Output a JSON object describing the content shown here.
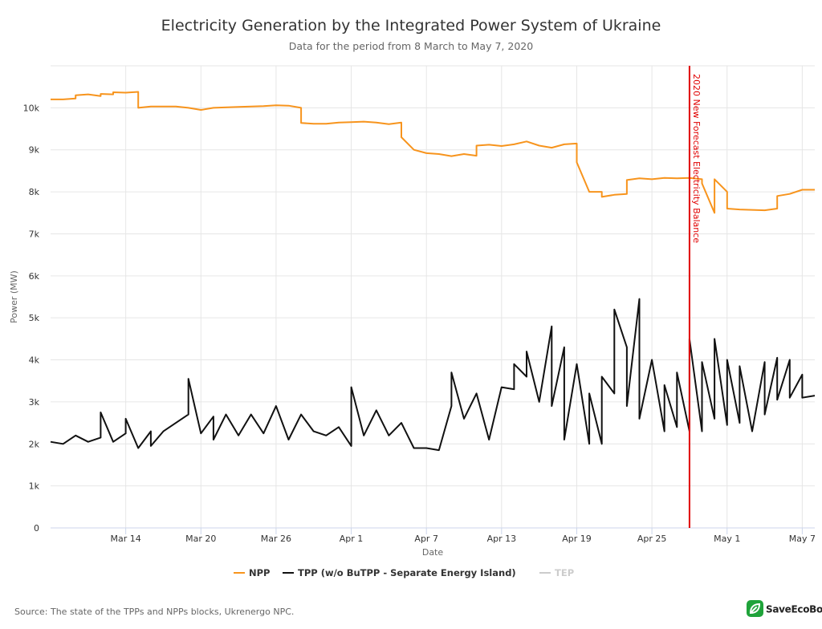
{
  "chart_data": {
    "type": "line",
    "title": "Electricity Generation by the Integrated Power System of Ukraine",
    "subtitle": "Data for the period from 8 March to May 7, 2020",
    "xlabel": "Date",
    "ylabel": "Power (MW)",
    "ylim": [
      0,
      11000
    ],
    "yticks": [
      {
        "value": 0,
        "label": "0"
      },
      {
        "value": 1000,
        "label": "1k"
      },
      {
        "value": 2000,
        "label": "2k"
      },
      {
        "value": 3000,
        "label": "3k"
      },
      {
        "value": 4000,
        "label": "4k"
      },
      {
        "value": 5000,
        "label": "5k"
      },
      {
        "value": 6000,
        "label": "6k"
      },
      {
        "value": 7000,
        "label": "7k"
      },
      {
        "value": 8000,
        "label": "8k"
      },
      {
        "value": 9000,
        "label": "9k"
      },
      {
        "value": 10000,
        "label": "10k"
      }
    ],
    "xlim": [
      "2020-03-08",
      "2020-05-08"
    ],
    "xticks": [
      {
        "date": "2020-03-14",
        "label": "Mar 14"
      },
      {
        "date": "2020-03-20",
        "label": "Mar 20"
      },
      {
        "date": "2020-03-26",
        "label": "Mar 26"
      },
      {
        "date": "2020-04-01",
        "label": "Apr 1"
      },
      {
        "date": "2020-04-07",
        "label": "Apr 7"
      },
      {
        "date": "2020-04-13",
        "label": "Apr 13"
      },
      {
        "date": "2020-04-19",
        "label": "Apr 19"
      },
      {
        "date": "2020-04-25",
        "label": "Apr 25"
      },
      {
        "date": "2020-05-01",
        "label": "May 1"
      },
      {
        "date": "2020-05-07",
        "label": "May 7"
      }
    ],
    "grid": true,
    "legend_position": "bottom-center",
    "plot_line": {
      "date": "2020-04-28",
      "label": "2020 New Forecast Electricity Balance",
      "color": "#e00000"
    },
    "series": [
      {
        "name": "NPP",
        "color": "#f7941d",
        "points": [
          [
            "2020-03-08",
            10200
          ],
          [
            "2020-03-09",
            10200
          ],
          [
            "2020-03-10",
            10220
          ],
          [
            "2020-03-10",
            10300
          ],
          [
            "2020-03-11",
            10320
          ],
          [
            "2020-03-12",
            10280
          ],
          [
            "2020-03-12",
            10330
          ],
          [
            "2020-03-13",
            10320
          ],
          [
            "2020-03-13",
            10370
          ],
          [
            "2020-03-14",
            10360
          ],
          [
            "2020-03-15",
            10380
          ],
          [
            "2020-03-15",
            10000
          ],
          [
            "2020-03-16",
            10030
          ],
          [
            "2020-03-18",
            10030
          ],
          [
            "2020-03-19",
            10000
          ],
          [
            "2020-03-20",
            9950
          ],
          [
            "2020-03-21",
            10000
          ],
          [
            "2020-03-23",
            10020
          ],
          [
            "2020-03-25",
            10040
          ],
          [
            "2020-03-26",
            10060
          ],
          [
            "2020-03-27",
            10050
          ],
          [
            "2020-03-28",
            10000
          ],
          [
            "2020-03-28",
            9640
          ],
          [
            "2020-03-29",
            9620
          ],
          [
            "2020-03-30",
            9620
          ],
          [
            "2020-03-31",
            9650
          ],
          [
            "2020-04-01",
            9660
          ],
          [
            "2020-04-02",
            9670
          ],
          [
            "2020-04-03",
            9650
          ],
          [
            "2020-04-04",
            9610
          ],
          [
            "2020-04-05",
            9650
          ],
          [
            "2020-04-05",
            9300
          ],
          [
            "2020-04-06",
            9000
          ],
          [
            "2020-04-07",
            8920
          ],
          [
            "2020-04-08",
            8900
          ],
          [
            "2020-04-09",
            8850
          ],
          [
            "2020-04-10",
            8900
          ],
          [
            "2020-04-11",
            8860
          ],
          [
            "2020-04-11",
            9100
          ],
          [
            "2020-04-12",
            9120
          ],
          [
            "2020-04-13",
            9090
          ],
          [
            "2020-04-14",
            9130
          ],
          [
            "2020-04-15",
            9200
          ],
          [
            "2020-04-16",
            9100
          ],
          [
            "2020-04-17",
            9050
          ],
          [
            "2020-04-18",
            9130
          ],
          [
            "2020-04-19",
            9150
          ],
          [
            "2020-04-19",
            8700
          ],
          [
            "2020-04-20",
            8000
          ],
          [
            "2020-04-21",
            8000
          ],
          [
            "2020-04-21",
            7880
          ],
          [
            "2020-04-22",
            7930
          ],
          [
            "2020-04-23",
            7950
          ],
          [
            "2020-04-23",
            8280
          ],
          [
            "2020-04-24",
            8320
          ],
          [
            "2020-04-25",
            8300
          ],
          [
            "2020-04-26",
            8330
          ],
          [
            "2020-04-27",
            8320
          ],
          [
            "2020-04-28",
            8330
          ],
          [
            "2020-04-29",
            8300
          ],
          [
            "2020-04-29",
            8200
          ],
          [
            "2020-04-30",
            7500
          ],
          [
            "2020-04-30",
            8300
          ],
          [
            "2020-05-01",
            8000
          ],
          [
            "2020-05-01",
            7600
          ],
          [
            "2020-05-02",
            7580
          ],
          [
            "2020-05-03",
            7570
          ],
          [
            "2020-05-04",
            7560
          ],
          [
            "2020-05-05",
            7600
          ],
          [
            "2020-05-05",
            7900
          ],
          [
            "2020-05-06",
            7950
          ],
          [
            "2020-05-07",
            8050
          ],
          [
            "2020-05-08",
            8050
          ]
        ]
      },
      {
        "name": "TPP (w/o BuTPP - Separate Energy Island)",
        "color": "#111111",
        "points": [
          [
            "2020-03-08",
            2050
          ],
          [
            "2020-03-09",
            2000
          ],
          [
            "2020-03-10",
            2200
          ],
          [
            "2020-03-11",
            2050
          ],
          [
            "2020-03-12",
            2150
          ],
          [
            "2020-03-12",
            2750
          ],
          [
            "2020-03-13",
            2050
          ],
          [
            "2020-03-14",
            2250
          ],
          [
            "2020-03-14",
            2600
          ],
          [
            "2020-03-15",
            1900
          ],
          [
            "2020-03-16",
            2300
          ],
          [
            "2020-03-16",
            1950
          ],
          [
            "2020-03-17",
            2300
          ],
          [
            "2020-03-18",
            2500
          ],
          [
            "2020-03-19",
            2700
          ],
          [
            "2020-03-19",
            3550
          ],
          [
            "2020-03-20",
            2250
          ],
          [
            "2020-03-21",
            2650
          ],
          [
            "2020-03-21",
            2100
          ],
          [
            "2020-03-22",
            2700
          ],
          [
            "2020-03-23",
            2200
          ],
          [
            "2020-03-24",
            2700
          ],
          [
            "2020-03-25",
            2250
          ],
          [
            "2020-03-26",
            2900
          ],
          [
            "2020-03-27",
            2100
          ],
          [
            "2020-03-28",
            2700
          ],
          [
            "2020-03-29",
            2300
          ],
          [
            "2020-03-30",
            2200
          ],
          [
            "2020-03-31",
            2400
          ],
          [
            "2020-04-01",
            1950
          ],
          [
            "2020-04-01",
            3350
          ],
          [
            "2020-04-02",
            2200
          ],
          [
            "2020-04-03",
            2800
          ],
          [
            "2020-04-04",
            2200
          ],
          [
            "2020-04-05",
            2500
          ],
          [
            "2020-04-06",
            1900
          ],
          [
            "2020-04-07",
            1900
          ],
          [
            "2020-04-08",
            1850
          ],
          [
            "2020-04-09",
            2900
          ],
          [
            "2020-04-09",
            3700
          ],
          [
            "2020-04-10",
            2600
          ],
          [
            "2020-04-11",
            3200
          ],
          [
            "2020-04-12",
            2100
          ],
          [
            "2020-04-13",
            3350
          ],
          [
            "2020-04-14",
            3300
          ],
          [
            "2020-04-14",
            3900
          ],
          [
            "2020-04-15",
            3600
          ],
          [
            "2020-04-15",
            4200
          ],
          [
            "2020-04-16",
            3000
          ],
          [
            "2020-04-17",
            4800
          ],
          [
            "2020-04-17",
            2900
          ],
          [
            "2020-04-18",
            4300
          ],
          [
            "2020-04-18",
            2100
          ],
          [
            "2020-04-19",
            3900
          ],
          [
            "2020-04-20",
            2000
          ],
          [
            "2020-04-20",
            3200
          ],
          [
            "2020-04-21",
            2000
          ],
          [
            "2020-04-21",
            3600
          ],
          [
            "2020-04-22",
            3200
          ],
          [
            "2020-04-22",
            5200
          ],
          [
            "2020-04-23",
            4300
          ],
          [
            "2020-04-23",
            2900
          ],
          [
            "2020-04-24",
            5450
          ],
          [
            "2020-04-24",
            2600
          ],
          [
            "2020-04-25",
            4000
          ],
          [
            "2020-04-26",
            2300
          ],
          [
            "2020-04-26",
            3400
          ],
          [
            "2020-04-27",
            2400
          ],
          [
            "2020-04-27",
            3700
          ],
          [
            "2020-04-28",
            2300
          ],
          [
            "2020-04-28",
            4500
          ],
          [
            "2020-04-29",
            2300
          ],
          [
            "2020-04-29",
            3950
          ],
          [
            "2020-04-30",
            2600
          ],
          [
            "2020-04-30",
            4500
          ],
          [
            "2020-05-01",
            2450
          ],
          [
            "2020-05-01",
            4000
          ],
          [
            "2020-05-02",
            2500
          ],
          [
            "2020-05-02",
            3850
          ],
          [
            "2020-05-03",
            2300
          ],
          [
            "2020-05-04",
            3950
          ],
          [
            "2020-05-04",
            2700
          ],
          [
            "2020-05-05",
            4050
          ],
          [
            "2020-05-05",
            3050
          ],
          [
            "2020-05-06",
            4000
          ],
          [
            "2020-05-06",
            3100
          ],
          [
            "2020-05-07",
            3650
          ],
          [
            "2020-05-07",
            3100
          ],
          [
            "2020-05-08",
            3150
          ]
        ]
      },
      {
        "name": "TEP",
        "color": "#cccccc",
        "hidden": true,
        "points": []
      }
    ]
  },
  "footer": {
    "source": "Source: The state of the TPPs and NPPs blocks, Ukrenergo NPC.",
    "brand": "SaveEcoBot",
    "brand_color": "#1fa33a"
  }
}
